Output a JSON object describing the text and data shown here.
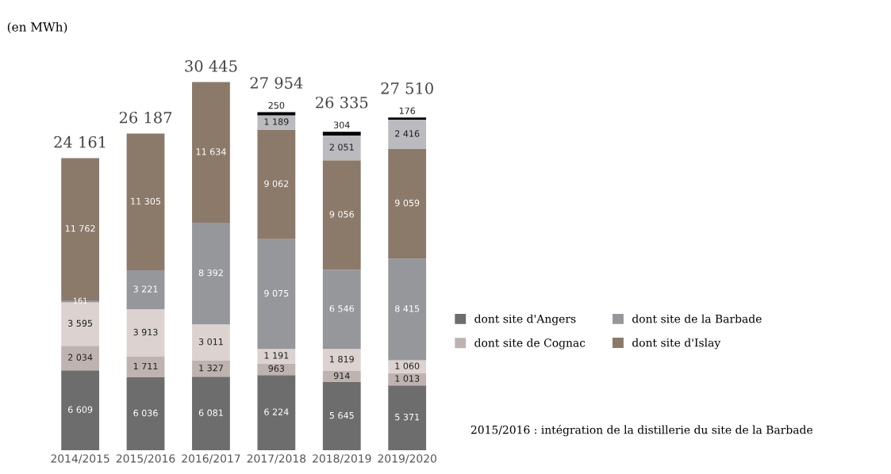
{
  "chart_data": {
    "type": "bar",
    "stacked": true,
    "title": "(en MWh)",
    "categories": [
      "2014/2015",
      "2015/2016",
      "2016/2017",
      "2017/2018",
      "2018/2019",
      "2019/2020"
    ],
    "series": [
      {
        "name": "dont site d'Angers",
        "color": "#6d6d6d",
        "values": [
          6609,
          6036,
          6081,
          6224,
          5645,
          5371
        ],
        "value_labels": [
          "6 609",
          "6 036",
          "6 081",
          "6 224",
          "5 645",
          "5 371"
        ]
      },
      {
        "name": "dont site de Cognac",
        "color": "#bfb3b1",
        "values": [
          2034,
          1711,
          1327,
          963,
          914,
          1013
        ],
        "value_labels": [
          "2 034",
          "1 711",
          "1 327",
          "963",
          "914",
          "1 013"
        ]
      },
      {
        "color": "#dcd3d1",
        "values": [
          3595,
          3913,
          3011,
          1191,
          1819,
          1060
        ],
        "value_labels": [
          "3 595",
          "3 913",
          "3 011",
          "1 191",
          "1 819",
          "1 060"
        ]
      },
      {
        "name": "dont site de la Barbade",
        "color": "#96979b",
        "values": [
          161,
          3221,
          8392,
          9075,
          6546,
          8415
        ],
        "value_labels": [
          "161",
          "3 221",
          "8 392",
          "9 075",
          "6 546",
          "8 415"
        ]
      },
      {
        "name": "dont site d'Islay",
        "color": "#8b7a6a",
        "values": [
          11762,
          11305,
          11634,
          9062,
          9056,
          9059
        ],
        "value_labels": [
          "11 762",
          "11 305",
          "11 634",
          "9 062",
          "9 056",
          "9 059"
        ]
      },
      {
        "color": "#bbbbbf",
        "values": [
          null,
          null,
          null,
          1189,
          2051,
          2416
        ],
        "value_labels": [
          null,
          null,
          null,
          "1 189",
          "2 051",
          "2 416"
        ]
      },
      {
        "color": "#000000",
        "values": [
          null,
          null,
          null,
          250,
          304,
          176
        ],
        "value_labels": [
          null,
          null,
          null,
          "250",
          "304",
          "176"
        ]
      }
    ],
    "totals": [
      "24 161",
      "26 187",
      "30 445",
      "27 954",
      "26 335",
      "27 510"
    ],
    "legend": "right",
    "tick_labels": "x",
    "grid": false,
    "annotations": [
      "2015/2016 : intégration de la distillerie du site de la Barbade"
    ]
  }
}
